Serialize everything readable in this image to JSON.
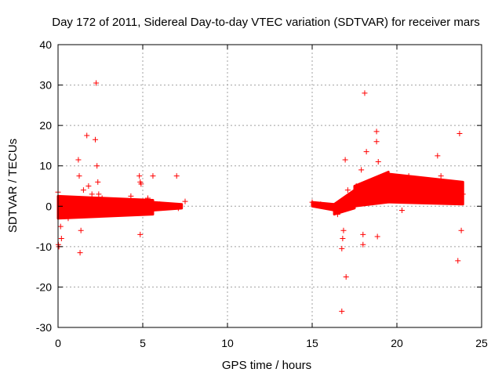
{
  "chart_data": {
    "type": "scatter",
    "title": "Day 172 of 2011, Sidereal Day-to-day VTEC variation (SDTVAR) for receiver mars",
    "xlabel": "GPS time / hours",
    "ylabel": "SDTVAR / TECUs",
    "xlim": [
      0,
      25
    ],
    "ylim": [
      -30,
      40
    ],
    "xticks": [
      0,
      5,
      10,
      15,
      20,
      25
    ],
    "yticks": [
      -30,
      -20,
      -10,
      0,
      10,
      20,
      30,
      40
    ],
    "xtick_labels": [
      "0",
      "5",
      "10",
      "15",
      "20",
      "25"
    ],
    "ytick_labels": [
      "-30",
      "-20",
      "-10",
      "0",
      "10",
      "20",
      "30",
      "40"
    ],
    "grid": true,
    "marker": "+",
    "series": [
      {
        "name": "SDTVAR",
        "color": "#ff0000",
        "points": [
          [
            0.0,
            3.5
          ],
          [
            0.02,
            -9.5
          ],
          [
            0.05,
            -10.0
          ],
          [
            0.1,
            2.0
          ],
          [
            0.15,
            -5.0
          ],
          [
            0.2,
            -8.0
          ],
          [
            0.3,
            1.0
          ],
          [
            0.4,
            -2.0
          ],
          [
            0.5,
            2.0
          ],
          [
            0.6,
            -3.0
          ],
          [
            0.8,
            1.5
          ],
          [
            1.0,
            -2.0
          ],
          [
            1.2,
            11.5
          ],
          [
            1.25,
            7.5
          ],
          [
            1.3,
            -11.5
          ],
          [
            1.35,
            -6.0
          ],
          [
            1.5,
            4.0
          ],
          [
            1.7,
            17.5
          ],
          [
            1.8,
            5.0
          ],
          [
            2.0,
            3.0
          ],
          [
            2.2,
            16.5
          ],
          [
            2.25,
            30.5
          ],
          [
            2.3,
            10.0
          ],
          [
            2.35,
            6.0
          ],
          [
            2.4,
            3.0
          ],
          [
            2.6,
            2.0
          ],
          [
            3.0,
            1.5
          ],
          [
            3.5,
            1.0
          ],
          [
            4.0,
            0.5
          ],
          [
            4.3,
            2.5
          ],
          [
            4.8,
            7.5
          ],
          [
            4.85,
            6.0
          ],
          [
            4.9,
            5.5
          ],
          [
            4.85,
            -7.0
          ],
          [
            5.0,
            1.0
          ],
          [
            5.3,
            2.0
          ],
          [
            5.6,
            7.5
          ],
          [
            6.0,
            0.5
          ],
          [
            6.5,
            0.0
          ],
          [
            7.0,
            7.5
          ],
          [
            7.1,
            -0.5
          ],
          [
            7.5,
            1.2
          ],
          [
            15.0,
            1.0
          ],
          [
            15.5,
            0.5
          ],
          [
            16.0,
            0.0
          ],
          [
            16.5,
            -2.0
          ],
          [
            16.75,
            -10.5
          ],
          [
            16.8,
            -8.0
          ],
          [
            16.75,
            -26.0
          ],
          [
            16.85,
            -6.0
          ],
          [
            16.95,
            11.5
          ],
          [
            17.0,
            -17.5
          ],
          [
            17.1,
            4.0
          ],
          [
            17.3,
            2.0
          ],
          [
            17.6,
            5.0
          ],
          [
            17.9,
            9.0
          ],
          [
            18.0,
            -9.5
          ],
          [
            18.0,
            -7.0
          ],
          [
            18.1,
            28.0
          ],
          [
            18.2,
            13.5
          ],
          [
            18.3,
            6.0
          ],
          [
            18.5,
            3.0
          ],
          [
            18.8,
            18.5
          ],
          [
            18.8,
            16.0
          ],
          [
            18.85,
            -7.5
          ],
          [
            18.9,
            11.0
          ],
          [
            19.0,
            6.0
          ],
          [
            19.2,
            2.5
          ],
          [
            19.5,
            8.0
          ],
          [
            19.8,
            5.0
          ],
          [
            20.0,
            4.0
          ],
          [
            20.3,
            -1.0
          ],
          [
            20.5,
            3.0
          ],
          [
            20.7,
            7.5
          ],
          [
            21.0,
            5.0
          ],
          [
            21.5,
            4.0
          ],
          [
            22.0,
            3.5
          ],
          [
            22.4,
            12.5
          ],
          [
            22.6,
            7.5
          ],
          [
            23.0,
            4.5
          ],
          [
            23.3,
            4.0
          ],
          [
            23.6,
            -13.5
          ],
          [
            23.7,
            18.0
          ],
          [
            23.8,
            -6.0
          ],
          [
            23.9,
            3.0
          ]
        ]
      }
    ],
    "dense_band": {
      "segments": [
        {
          "x_start": 0.0,
          "x_end": 5.6,
          "low_start": -3.0,
          "low_end": -2.0,
          "high_start": 2.5,
          "high_end": 1.5
        },
        {
          "x_start": 5.6,
          "x_end": 7.3,
          "low_start": -1.0,
          "low_end": -0.5,
          "high_start": 1.0,
          "high_end": 0.5
        },
        {
          "x_start": 15.0,
          "x_end": 16.3,
          "low_start": 0.0,
          "low_end": -1.0,
          "high_start": 1.0,
          "high_end": 0.5
        },
        {
          "x_start": 16.3,
          "x_end": 17.5,
          "low_start": -2.0,
          "low_end": -0.5,
          "high_start": 0.5,
          "high_end": 4.0
        },
        {
          "x_start": 17.5,
          "x_end": 19.5,
          "low_start": 0.0,
          "low_end": 1.0,
          "high_start": 5.0,
          "high_end": 8.5
        },
        {
          "x_start": 19.5,
          "x_end": 23.9,
          "low_start": 1.0,
          "low_end": 0.5,
          "high_start": 8.0,
          "high_end": 6.0
        }
      ]
    }
  }
}
